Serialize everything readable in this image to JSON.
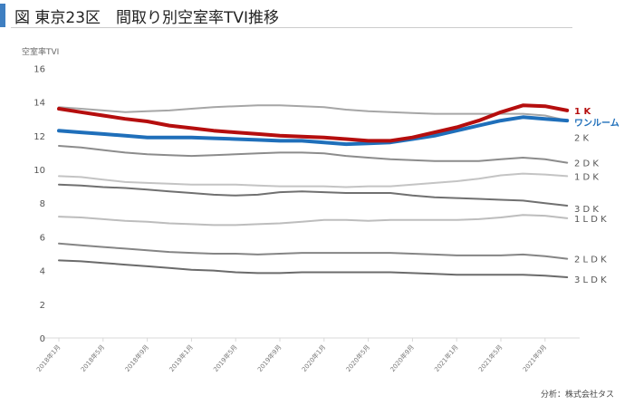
{
  "header": {
    "title": "図 東京23区　間取り別空室率TVI推移"
  },
  "source": "分析：株式会社タス",
  "chart_data": {
    "type": "line",
    "title": "図 東京23区　間取り別空室率TVI推移",
    "ylabel": "空室率TVI",
    "xlabel": "",
    "ylim": [
      0,
      16
    ],
    "yticks": [
      0,
      2,
      4,
      6,
      8,
      10,
      12,
      14,
      16
    ],
    "xtick_labels": [
      "2018年1月",
      "2018年5月",
      "2018年9月",
      "2019年1月",
      "2019年5月",
      "2019年9月",
      "2020年1月",
      "2020年5月",
      "2020年9月",
      "2021年1月",
      "2021年5月",
      "2021年9月"
    ],
    "x_months_from_2018_01": [
      0,
      2,
      4,
      6,
      8,
      10,
      12,
      14,
      16,
      18,
      20,
      22,
      24,
      26,
      28,
      30,
      32,
      34,
      36,
      38,
      40,
      42,
      44,
      46
    ],
    "grid": false,
    "legend": "right-end labels",
    "series": [
      {
        "name": "2 K",
        "color": "#a6a6a6",
        "width": 2,
        "values": [
          13.7,
          13.6,
          13.5,
          13.4,
          13.45,
          13.5,
          13.6,
          13.7,
          13.75,
          13.8,
          13.8,
          13.75,
          13.7,
          13.55,
          13.45,
          13.4,
          13.35,
          13.3,
          13.3,
          13.3,
          13.3,
          13.3,
          13.2,
          12.9
        ]
      },
      {
        "name": "2 D K",
        "color": "#8c8c8c",
        "width": 2,
        "values": [
          11.4,
          11.3,
          11.15,
          11.0,
          10.9,
          10.85,
          10.8,
          10.85,
          10.9,
          10.95,
          11.0,
          11.0,
          10.95,
          10.8,
          10.7,
          10.6,
          10.55,
          10.5,
          10.5,
          10.5,
          10.6,
          10.7,
          10.6,
          10.4
        ]
      },
      {
        "name": "1 D K",
        "color": "#c4c4c4",
        "width": 2,
        "values": [
          9.6,
          9.55,
          9.4,
          9.25,
          9.2,
          9.15,
          9.1,
          9.1,
          9.1,
          9.05,
          9.0,
          9.0,
          9.0,
          8.95,
          9.0,
          9.0,
          9.1,
          9.2,
          9.3,
          9.45,
          9.65,
          9.75,
          9.7,
          9.6
        ]
      },
      {
        "name": "3 D K",
        "color": "#707070",
        "width": 2,
        "values": [
          9.1,
          9.05,
          8.95,
          8.9,
          8.8,
          8.7,
          8.6,
          8.5,
          8.45,
          8.5,
          8.65,
          8.7,
          8.65,
          8.6,
          8.6,
          8.6,
          8.45,
          8.35,
          8.3,
          8.25,
          8.2,
          8.15,
          8.0,
          7.85
        ]
      },
      {
        "name": "1 L D K",
        "color": "#bdbdbd",
        "width": 2,
        "values": [
          7.2,
          7.15,
          7.05,
          6.95,
          6.9,
          6.8,
          6.75,
          6.7,
          6.7,
          6.75,
          6.8,
          6.9,
          7.0,
          7.0,
          6.95,
          7.0,
          7.0,
          7.0,
          7.0,
          7.05,
          7.15,
          7.3,
          7.25,
          7.1
        ]
      },
      {
        "name": "2 L D K",
        "color": "#858585",
        "width": 2,
        "values": [
          5.6,
          5.5,
          5.4,
          5.3,
          5.2,
          5.1,
          5.05,
          5.0,
          5.0,
          4.95,
          5.0,
          5.05,
          5.05,
          5.05,
          5.05,
          5.05,
          5.0,
          4.95,
          4.9,
          4.9,
          4.9,
          4.95,
          4.85,
          4.7
        ]
      },
      {
        "name": "3 L D K",
        "color": "#6b6b6b",
        "width": 2,
        "values": [
          4.6,
          4.55,
          4.45,
          4.35,
          4.25,
          4.15,
          4.05,
          4.0,
          3.9,
          3.85,
          3.85,
          3.9,
          3.9,
          3.9,
          3.9,
          3.9,
          3.85,
          3.8,
          3.75,
          3.75,
          3.75,
          3.75,
          3.7,
          3.6
        ]
      },
      {
        "name": "ワンルーム",
        "color": "#1f6fba",
        "width": 4,
        "values": [
          12.3,
          12.2,
          12.1,
          12.0,
          11.9,
          11.9,
          11.9,
          11.85,
          11.8,
          11.75,
          11.7,
          11.7,
          11.6,
          11.5,
          11.55,
          11.6,
          11.8,
          12.0,
          12.3,
          12.6,
          12.9,
          13.1,
          13.0,
          12.9
        ]
      },
      {
        "name": "1 K",
        "color": "#b50e0e",
        "width": 4,
        "values": [
          13.6,
          13.4,
          13.2,
          13.0,
          12.85,
          12.6,
          12.45,
          12.3,
          12.2,
          12.1,
          12.0,
          11.95,
          11.9,
          11.8,
          11.7,
          11.7,
          11.9,
          12.2,
          12.5,
          12.9,
          13.4,
          13.8,
          13.75,
          13.5
        ]
      }
    ],
    "label_positions": {
      "1 K": 13.5,
      "ワンルーム": 12.8,
      "2 K": 11.9,
      "2 D K": 10.4,
      "1 D K": 9.6,
      "3 D K": 7.7,
      "1 L D K": 7.1,
      "2 L D K": 4.7,
      "3 L D K": 3.5
    }
  }
}
